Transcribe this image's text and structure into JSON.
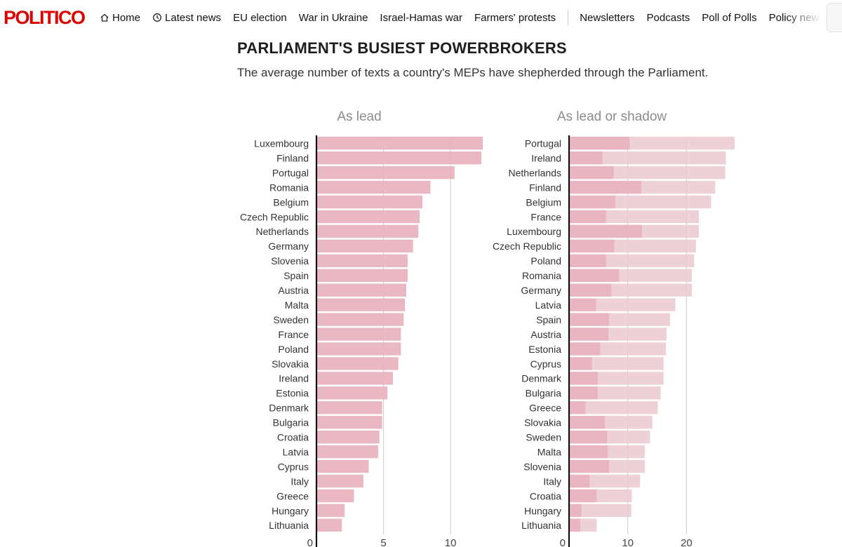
{
  "nav": {
    "logo": "POLITICO",
    "items": [
      {
        "label": "Home",
        "icon": "home-icon"
      },
      {
        "label": "Latest news",
        "icon": "clock-icon"
      },
      {
        "label": "EU election"
      },
      {
        "label": "War in Ukraine"
      },
      {
        "label": "Israel-Hamas war"
      },
      {
        "label": "Farmers' protests"
      }
    ],
    "items_right": [
      {
        "label": "Newsletters"
      },
      {
        "label": "Podcasts"
      },
      {
        "label": "Poll of Polls"
      },
      {
        "label": "Policy news"
      }
    ]
  },
  "colors": {
    "bar_lead": "#e8b0bc",
    "bar_shadow": "#ebcbd2",
    "axis": "#111111",
    "grid": "#cccccc",
    "logo": "#dc0000"
  },
  "chart_data": [
    {
      "type": "bar",
      "orientation": "horizontal",
      "title": "PARLIAMENT'S BUSIEST POWERBROKERS",
      "subtitle": "The average number of texts a country's MEPs have shepherded through the Parliament.",
      "panel_title": "As lead",
      "categories": [
        "Luxembourg",
        "Finland",
        "Portugal",
        "Romania",
        "Belgium",
        "Czech Republic",
        "Netherlands",
        "Germany",
        "Slovenia",
        "Spain",
        "Austria",
        "Malta",
        "Sweden",
        "France",
        "Poland",
        "Slovakia",
        "Ireland",
        "Estonia",
        "Denmark",
        "Bulgaria",
        "Croatia",
        "Latvia",
        "Cyprus",
        "Italy",
        "Greece",
        "Hungary",
        "Lithuania"
      ],
      "series": [
        {
          "values": [
            12.4,
            12.3,
            10.3,
            8.5,
            7.9,
            7.7,
            7.6,
            7.2,
            6.8,
            6.8,
            6.7,
            6.6,
            6.5,
            6.3,
            6.3,
            6.1,
            5.7,
            5.3,
            4.9,
            4.9,
            4.7,
            4.6,
            3.9,
            3.5,
            2.8,
            2.1,
            1.9
          ]
        }
      ],
      "xlim": [
        0,
        12.6
      ],
      "xticks": [
        0,
        5,
        10
      ],
      "grid": true
    },
    {
      "type": "bar",
      "orientation": "horizontal",
      "stacked": false,
      "panel_title": "As lead or shadow",
      "categories": [
        "Portugal",
        "Ireland",
        "Netherlands",
        "Finland",
        "Belgium",
        "France",
        "Luxembourg",
        "Czech Republic",
        "Poland",
        "Romania",
        "Germany",
        "Latvia",
        "Spain",
        "Austria",
        "Estonia",
        "Cyprus",
        "Denmark",
        "Bulgaria",
        "Greece",
        "Slovakia",
        "Sweden",
        "Malta",
        "Slovenia",
        "Italy",
        "Croatia",
        "Hungary",
        "Lithuania"
      ],
      "series": [
        {
          "name": "lead",
          "values": [
            10.3,
            5.7,
            7.6,
            12.3,
            7.9,
            6.3,
            12.4,
            7.7,
            6.3,
            8.5,
            7.2,
            4.6,
            6.8,
            6.7,
            5.3,
            3.9,
            4.9,
            4.9,
            2.8,
            6.1,
            6.5,
            6.6,
            6.8,
            3.5,
            4.7,
            2.1,
            1.9
          ]
        },
        {
          "name": "lead or shadow",
          "values": [
            28.2,
            26.7,
            26.6,
            24.9,
            24.2,
            22.1,
            22.1,
            21.6,
            21.3,
            20.9,
            20.9,
            18.1,
            17.2,
            16.6,
            16.5,
            16.1,
            16.1,
            15.6,
            15.1,
            14.2,
            13.8,
            12.9,
            12.9,
            12.1,
            10.7,
            10.6,
            4.7
          ]
        }
      ],
      "xlim": [
        0,
        28.5
      ],
      "xticks": [
        0,
        10,
        20
      ],
      "grid": true
    }
  ]
}
